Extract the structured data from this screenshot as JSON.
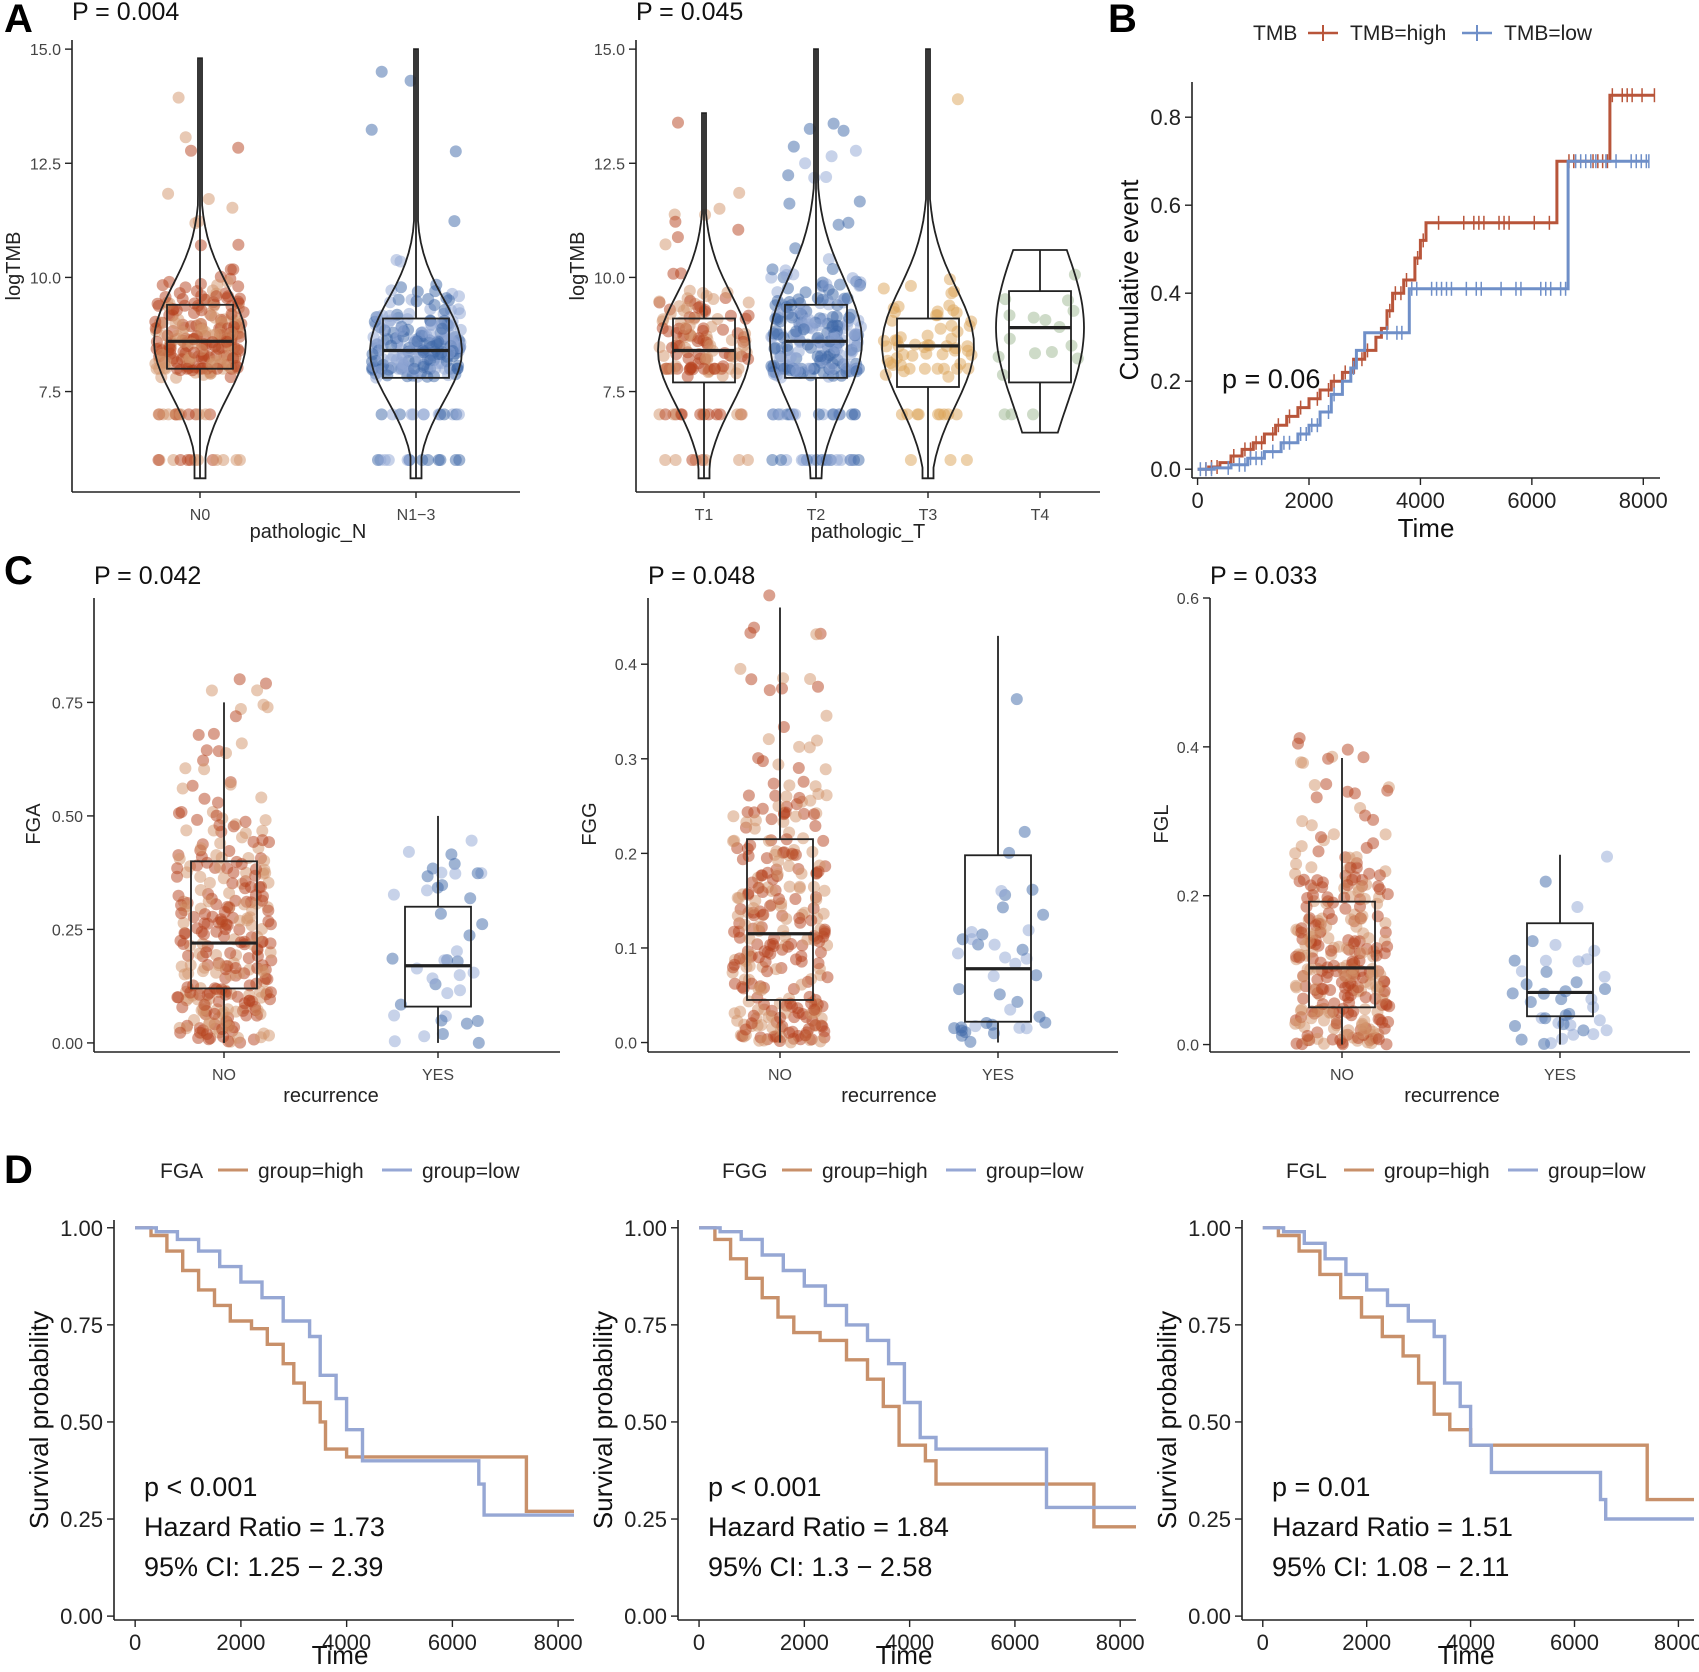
{
  "panel_letters": [
    "A",
    "B",
    "C",
    "D"
  ],
  "colors": {
    "high_dark": "#b5411d",
    "high_light": "#d2936a",
    "low_dark": "#3d67a8",
    "low_light": "#8fa6d3",
    "t3": "#dba458",
    "t4": "#9eb791",
    "km_high": "#c8906a",
    "km_low": "#96a7d4",
    "cum_high": "#b8553a",
    "cum_low": "#6f8fc8"
  },
  "chart_data": [
    {
      "id": "A1",
      "type": "violin-box",
      "pvalue": "P = 0.004",
      "xlabel": "pathologic_N",
      "ylabel": "logTMB",
      "categories": [
        "N0",
        "N1−3"
      ],
      "ylim": [
        5.3,
        15.2
      ],
      "yticks": [
        7.5,
        10.0,
        12.5,
        15.0
      ],
      "ytick_labels": [
        "7.5",
        "10.0",
        "12.5",
        "15.0"
      ],
      "box": [
        {
          "group": "N0",
          "min": 5.6,
          "q1": 8.0,
          "median": 8.6,
          "q3": 9.4,
          "max": 14.8,
          "n": 260
        },
        {
          "group": "N1−3",
          "min": 5.6,
          "q1": 7.8,
          "median": 8.4,
          "q3": 9.1,
          "max": 15.0,
          "n": 230
        }
      ]
    },
    {
      "id": "A2",
      "type": "violin-box",
      "pvalue": "P = 0.045",
      "xlabel": "pathologic_T",
      "ylabel": "logTMB",
      "categories": [
        "T1",
        "T2",
        "T3",
        "T4"
      ],
      "ylim": [
        5.3,
        15.2
      ],
      "yticks": [
        7.5,
        10.0,
        12.5,
        15.0
      ],
      "ytick_labels": [
        "7.5",
        "10.0",
        "12.5",
        "15.0"
      ],
      "box": [
        {
          "group": "T1",
          "min": 5.6,
          "q1": 7.7,
          "median": 8.4,
          "q3": 9.1,
          "max": 13.6,
          "n": 150
        },
        {
          "group": "T2",
          "min": 5.6,
          "q1": 7.8,
          "median": 8.6,
          "q3": 9.4,
          "max": 15.0,
          "n": 260
        },
        {
          "group": "T3",
          "min": 5.6,
          "q1": 7.6,
          "median": 8.5,
          "q3": 9.1,
          "max": 15.0,
          "n": 70
        },
        {
          "group": "T4",
          "min": 6.6,
          "q1": 7.7,
          "median": 8.9,
          "q3": 9.7,
          "max": 10.6,
          "n": 18
        }
      ]
    },
    {
      "id": "B",
      "type": "line-step",
      "pvalue": "p = 0.06",
      "xlabel": "Time",
      "ylabel": "Cumulative event",
      "legend_title": "TMB",
      "legend_position": "top",
      "xlim": [
        -100,
        8300
      ],
      "ylim": [
        -0.02,
        0.88
      ],
      "xticks": [
        0,
        2000,
        4000,
        6000,
        8000
      ],
      "xtick_labels": [
        "0",
        "2000",
        "4000",
        "6000",
        "8000"
      ],
      "yticks": [
        0.0,
        0.2,
        0.4,
        0.6,
        0.8
      ],
      "ytick_labels": [
        "0.0",
        "0.2",
        "0.4",
        "0.6",
        "0.8"
      ],
      "series": [
        {
          "name": "TMB=high",
          "points": [
            [
              0,
              0
            ],
            [
              200,
              0.005
            ],
            [
              400,
              0.015
            ],
            [
              600,
              0.03
            ],
            [
              800,
              0.045
            ],
            [
              1000,
              0.06
            ],
            [
              1200,
              0.08
            ],
            [
              1400,
              0.1
            ],
            [
              1600,
              0.12
            ],
            [
              1800,
              0.14
            ],
            [
              2000,
              0.16
            ],
            [
              2200,
              0.18
            ],
            [
              2400,
              0.2
            ],
            [
              2600,
              0.22
            ],
            [
              2800,
              0.25
            ],
            [
              3000,
              0.27
            ],
            [
              3200,
              0.3
            ],
            [
              3300,
              0.32
            ],
            [
              3400,
              0.36
            ],
            [
              3500,
              0.4
            ],
            [
              3700,
              0.43
            ],
            [
              3900,
              0.48
            ],
            [
              4000,
              0.52
            ],
            [
              4100,
              0.56
            ],
            [
              6450,
              0.56
            ],
            [
              6450,
              0.7
            ],
            [
              7400,
              0.7
            ],
            [
              7400,
              0.85
            ],
            [
              8200,
              0.85
            ]
          ]
        },
        {
          "name": "TMB=low",
          "points": [
            [
              0,
              0
            ],
            [
              300,
              0.003
            ],
            [
              600,
              0.01
            ],
            [
              900,
              0.025
            ],
            [
              1200,
              0.04
            ],
            [
              1500,
              0.06
            ],
            [
              1800,
              0.08
            ],
            [
              2000,
              0.1
            ],
            [
              2200,
              0.13
            ],
            [
              2400,
              0.17
            ],
            [
              2600,
              0.2
            ],
            [
              2750,
              0.23
            ],
            [
              2850,
              0.27
            ],
            [
              3000,
              0.31
            ],
            [
              3800,
              0.31
            ],
            [
              3800,
              0.41
            ],
            [
              6650,
              0.41
            ],
            [
              6650,
              0.7
            ],
            [
              8100,
              0.7
            ]
          ]
        }
      ]
    },
    {
      "id": "C1",
      "type": "box-jitter",
      "pvalue": "P = 0.042",
      "xlabel": "recurrence",
      "ylabel": "FGA",
      "categories": [
        "NO",
        "YES"
      ],
      "ylim": [
        -0.02,
        0.98
      ],
      "yticks": [
        0.0,
        0.25,
        0.5,
        0.75
      ],
      "ytick_labels": [
        "0.00",
        "0.25",
        "0.50",
        "0.75"
      ],
      "box": [
        {
          "group": "NO",
          "min": 0.0,
          "q1": 0.12,
          "median": 0.22,
          "q3": 0.4,
          "max": 0.75,
          "n": 300
        },
        {
          "group": "YES",
          "min": 0.0,
          "q1": 0.08,
          "median": 0.17,
          "q3": 0.3,
          "max": 0.5,
          "n": 40
        }
      ]
    },
    {
      "id": "C2",
      "type": "box-jitter",
      "pvalue": "P = 0.048",
      "xlabel": "recurrence",
      "ylabel": "FGG",
      "categories": [
        "NO",
        "YES"
      ],
      "ylim": [
        -0.01,
        0.47
      ],
      "yticks": [
        0.0,
        0.1,
        0.2,
        0.3,
        0.4
      ],
      "ytick_labels": [
        "0.0",
        "0.1",
        "0.2",
        "0.3",
        "0.4"
      ],
      "box": [
        {
          "group": "NO",
          "min": 0.0,
          "q1": 0.045,
          "median": 0.115,
          "q3": 0.215,
          "max": 0.46,
          "n": 300
        },
        {
          "group": "YES",
          "min": 0.0,
          "q1": 0.022,
          "median": 0.078,
          "q3": 0.198,
          "max": 0.43,
          "n": 40
        }
      ]
    },
    {
      "id": "C3",
      "type": "box-jitter",
      "pvalue": "P = 0.033",
      "xlabel": "recurrence",
      "ylabel": "FGL",
      "categories": [
        "NO",
        "YES"
      ],
      "ylim": [
        -0.01,
        0.6
      ],
      "yticks": [
        0.0,
        0.2,
        0.4,
        0.6
      ],
      "ytick_labels": [
        "0.0",
        "0.2",
        "0.4",
        "0.6"
      ],
      "box": [
        {
          "group": "NO",
          "min": 0.0,
          "q1": 0.05,
          "median": 0.103,
          "q3": 0.192,
          "max": 0.385,
          "n": 300
        },
        {
          "group": "YES",
          "min": 0.0,
          "q1": 0.038,
          "median": 0.07,
          "q3": 0.163,
          "max": 0.255,
          "n": 40
        }
      ]
    },
    {
      "id": "D1",
      "type": "line-step",
      "legend_title": "FGA",
      "legend_position": "top",
      "xlabel": "Time",
      "ylabel": "Survival probability",
      "xlim": [
        -400,
        8300
      ],
      "ylim": [
        -0.01,
        1.02
      ],
      "xticks": [
        0,
        2000,
        4000,
        6000,
        8000
      ],
      "xtick_labels": [
        "0",
        "2000",
        "4000",
        "6000",
        "8000"
      ],
      "yticks": [
        0.0,
        0.25,
        0.5,
        0.75,
        1.0
      ],
      "ytick_labels": [
        "0.00",
        "0.25",
        "0.50",
        "0.75",
        "1.00"
      ],
      "annotations": [
        "p < 0.001",
        "Hazard Ratio = 1.73",
        "95% CI: 1.25 − 2.39"
      ],
      "series": [
        {
          "name": "group=high",
          "points": [
            [
              0,
              1
            ],
            [
              300,
              0.98
            ],
            [
              600,
              0.94
            ],
            [
              900,
              0.89
            ],
            [
              1200,
              0.84
            ],
            [
              1500,
              0.8
            ],
            [
              1800,
              0.76
            ],
            [
              2200,
              0.74
            ],
            [
              2500,
              0.7
            ],
            [
              2800,
              0.65
            ],
            [
              3000,
              0.6
            ],
            [
              3200,
              0.55
            ],
            [
              3500,
              0.5
            ],
            [
              3600,
              0.43
            ],
            [
              4000,
              0.41
            ],
            [
              7400,
              0.41
            ],
            [
              7400,
              0.27
            ],
            [
              8300,
              0.27
            ]
          ]
        },
        {
          "name": "group=low",
          "points": [
            [
              0,
              1
            ],
            [
              400,
              0.99
            ],
            [
              800,
              0.97
            ],
            [
              1200,
              0.94
            ],
            [
              1600,
              0.9
            ],
            [
              2000,
              0.86
            ],
            [
              2400,
              0.82
            ],
            [
              2800,
              0.76
            ],
            [
              3300,
              0.72
            ],
            [
              3500,
              0.62
            ],
            [
              3800,
              0.56
            ],
            [
              4000,
              0.48
            ],
            [
              4300,
              0.4
            ],
            [
              6500,
              0.4
            ],
            [
              6500,
              0.34
            ],
            [
              6600,
              0.26
            ],
            [
              8300,
              0.26
            ]
          ]
        }
      ]
    },
    {
      "id": "D2",
      "type": "line-step",
      "legend_title": "FGG",
      "legend_position": "top",
      "xlabel": "Time",
      "ylabel": "Survival probability",
      "xlim": [
        -400,
        8300
      ],
      "ylim": [
        -0.01,
        1.02
      ],
      "xticks": [
        0,
        2000,
        4000,
        6000,
        8000
      ],
      "xtick_labels": [
        "0",
        "2000",
        "4000",
        "6000",
        "8000"
      ],
      "yticks": [
        0.0,
        0.25,
        0.5,
        0.75,
        1.0
      ],
      "ytick_labels": [
        "0.00",
        "0.25",
        "0.50",
        "0.75",
        "1.00"
      ],
      "annotations": [
        "p < 0.001",
        "Hazard Ratio = 1.84",
        "95% CI: 1.3 − 2.58"
      ],
      "series": [
        {
          "name": "group=high",
          "points": [
            [
              0,
              1
            ],
            [
              300,
              0.97
            ],
            [
              600,
              0.92
            ],
            [
              900,
              0.87
            ],
            [
              1200,
              0.82
            ],
            [
              1500,
              0.77
            ],
            [
              1800,
              0.73
            ],
            [
              2300,
              0.71
            ],
            [
              2800,
              0.66
            ],
            [
              3200,
              0.61
            ],
            [
              3500,
              0.54
            ],
            [
              3800,
              0.44
            ],
            [
              4300,
              0.4
            ],
            [
              4500,
              0.34
            ],
            [
              7500,
              0.34
            ],
            [
              7500,
              0.23
            ],
            [
              8300,
              0.23
            ]
          ]
        },
        {
          "name": "group=low",
          "points": [
            [
              0,
              1
            ],
            [
              400,
              0.99
            ],
            [
              800,
              0.97
            ],
            [
              1200,
              0.93
            ],
            [
              1600,
              0.89
            ],
            [
              2000,
              0.85
            ],
            [
              2400,
              0.8
            ],
            [
              2800,
              0.75
            ],
            [
              3200,
              0.71
            ],
            [
              3600,
              0.65
            ],
            [
              3900,
              0.55
            ],
            [
              4200,
              0.46
            ],
            [
              4500,
              0.43
            ],
            [
              6600,
              0.43
            ],
            [
              6600,
              0.28
            ],
            [
              8300,
              0.28
            ]
          ]
        }
      ]
    },
    {
      "id": "D3",
      "type": "line-step",
      "legend_title": "FGL",
      "legend_position": "top",
      "xlabel": "Time",
      "ylabel": "Survival probability",
      "xlim": [
        -400,
        8300
      ],
      "ylim": [
        -0.01,
        1.02
      ],
      "xticks": [
        0,
        2000,
        4000,
        6000,
        8000
      ],
      "xtick_labels": [
        "0",
        "2000",
        "4000",
        "6000",
        "8000"
      ],
      "yticks": [
        0.0,
        0.25,
        0.5,
        0.75,
        1.0
      ],
      "ytick_labels": [
        "0.00",
        "0.25",
        "0.50",
        "0.75",
        "1.00"
      ],
      "annotations": [
        "p = 0.01",
        "Hazard Ratio = 1.51",
        "95% CI: 1.08 − 2.11"
      ],
      "series": [
        {
          "name": "group=high",
          "points": [
            [
              0,
              1
            ],
            [
              300,
              0.98
            ],
            [
              700,
              0.94
            ],
            [
              1100,
              0.88
            ],
            [
              1500,
              0.82
            ],
            [
              1900,
              0.77
            ],
            [
              2300,
              0.72
            ],
            [
              2700,
              0.67
            ],
            [
              3000,
              0.6
            ],
            [
              3300,
              0.52
            ],
            [
              3600,
              0.48
            ],
            [
              4000,
              0.44
            ],
            [
              7400,
              0.44
            ],
            [
              7400,
              0.3
            ],
            [
              8300,
              0.3
            ]
          ]
        },
        {
          "name": "group=low",
          "points": [
            [
              0,
              1
            ],
            [
              400,
              0.99
            ],
            [
              800,
              0.96
            ],
            [
              1200,
              0.92
            ],
            [
              1600,
              0.88
            ],
            [
              2000,
              0.84
            ],
            [
              2400,
              0.8
            ],
            [
              2800,
              0.76
            ],
            [
              3300,
              0.72
            ],
            [
              3500,
              0.6
            ],
            [
              3800,
              0.54
            ],
            [
              4000,
              0.44
            ],
            [
              4400,
              0.37
            ],
            [
              6500,
              0.37
            ],
            [
              6500,
              0.3
            ],
            [
              6600,
              0.25
            ],
            [
              8300,
              0.25
            ]
          ]
        }
      ]
    }
  ]
}
